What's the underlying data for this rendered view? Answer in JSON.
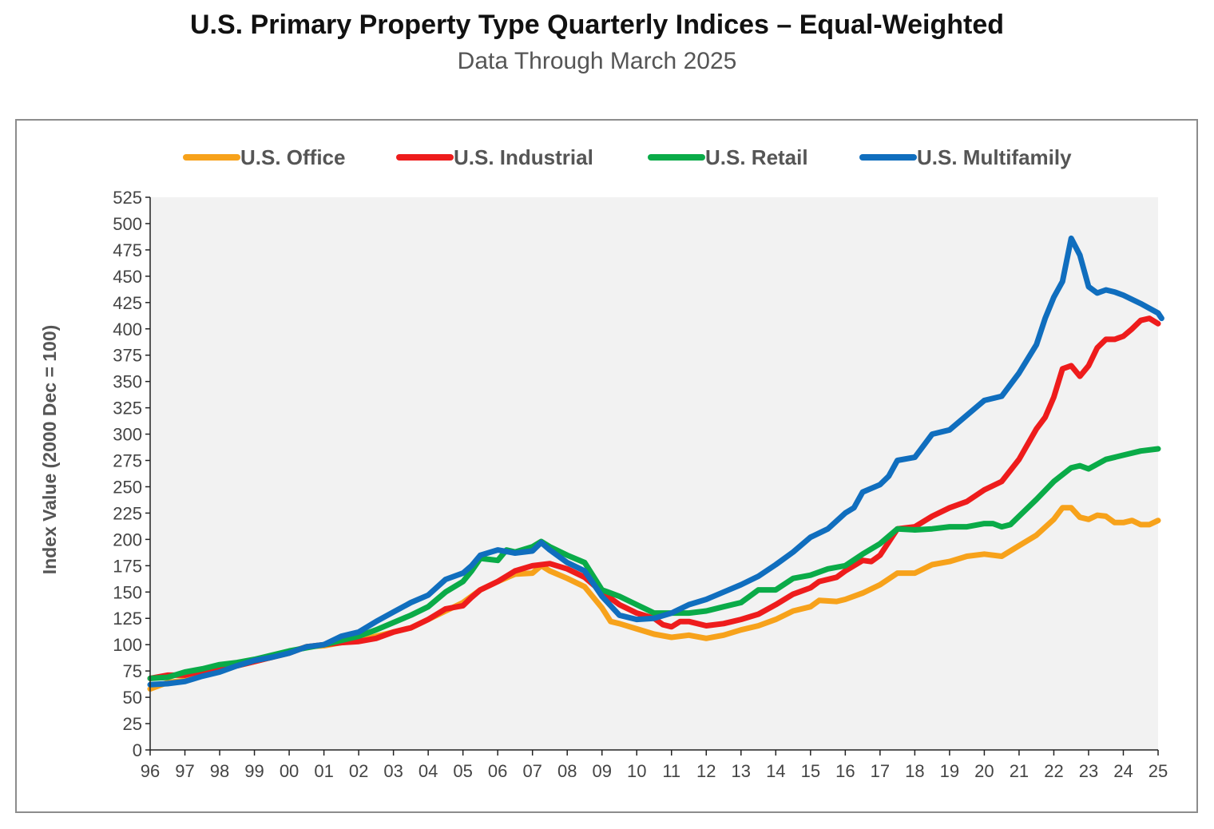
{
  "title": "U.S. Primary Property Type Quarterly Indices – Equal-Weighted",
  "subtitle": "Data Through March 2025",
  "chart_data": {
    "type": "line",
    "title": "U.S. Primary Property Type Quarterly Indices – Equal-Weighted",
    "subtitle": "Data Through March 2025",
    "xlabel": "",
    "ylabel": "Index Value (2000 Dec = 100)",
    "ylim": [
      0,
      525
    ],
    "xlim": [
      1996,
      2025
    ],
    "yticks": [
      0,
      25,
      50,
      75,
      100,
      125,
      150,
      175,
      200,
      225,
      250,
      275,
      300,
      325,
      350,
      375,
      400,
      425,
      450,
      475,
      500,
      525
    ],
    "xtick_labels": [
      "96",
      "97",
      "98",
      "99",
      "00",
      "01",
      "02",
      "03",
      "04",
      "05",
      "06",
      "07",
      "08",
      "09",
      "10",
      "11",
      "12",
      "13",
      "14",
      "15",
      "16",
      "17",
      "18",
      "19",
      "20",
      "21",
      "22",
      "23",
      "24",
      "25"
    ],
    "grid": false,
    "legend_position": "top",
    "series": [
      {
        "name": "U.S. Office",
        "color": "#f7a21b",
        "points": [
          [
            1996,
            58
          ],
          [
            1996.5,
            64
          ],
          [
            1997,
            66
          ],
          [
            1997.5,
            72
          ],
          [
            1998,
            76
          ],
          [
            1998.5,
            80
          ],
          [
            1999,
            84
          ],
          [
            1999.5,
            88
          ],
          [
            2000,
            93
          ],
          [
            2000.5,
            98
          ],
          [
            2001,
            99
          ],
          [
            2001.5,
            102
          ],
          [
            2002,
            104
          ],
          [
            2002.5,
            108
          ],
          [
            2003,
            112
          ],
          [
            2003.5,
            116
          ],
          [
            2004,
            124
          ],
          [
            2004.5,
            132
          ],
          [
            2005,
            140
          ],
          [
            2005.5,
            152
          ],
          [
            2006,
            160
          ],
          [
            2006.5,
            167
          ],
          [
            2007,
            168
          ],
          [
            2007.25,
            175
          ],
          [
            2007.5,
            170
          ],
          [
            2008,
            163
          ],
          [
            2008.5,
            155
          ],
          [
            2009,
            135
          ],
          [
            2009.25,
            122
          ],
          [
            2009.5,
            120
          ],
          [
            2010,
            115
          ],
          [
            2010.5,
            110
          ],
          [
            2011,
            107
          ],
          [
            2011.5,
            109
          ],
          [
            2012,
            106
          ],
          [
            2012.5,
            109
          ],
          [
            2013,
            114
          ],
          [
            2013.5,
            118
          ],
          [
            2014,
            124
          ],
          [
            2014.5,
            132
          ],
          [
            2015,
            136
          ],
          [
            2015.25,
            142
          ],
          [
            2015.75,
            141
          ],
          [
            2016,
            143
          ],
          [
            2016.5,
            149
          ],
          [
            2017,
            157
          ],
          [
            2017.5,
            168
          ],
          [
            2018,
            168
          ],
          [
            2018.5,
            176
          ],
          [
            2019,
            179
          ],
          [
            2019.5,
            184
          ],
          [
            2020,
            186
          ],
          [
            2020.5,
            184
          ],
          [
            2021,
            194
          ],
          [
            2021.5,
            204
          ],
          [
            2022,
            219
          ],
          [
            2022.25,
            230
          ],
          [
            2022.5,
            230
          ],
          [
            2022.75,
            221
          ],
          [
            2023,
            219
          ],
          [
            2023.25,
            223
          ],
          [
            2023.5,
            222
          ],
          [
            2023.75,
            216
          ],
          [
            2024,
            216
          ],
          [
            2024.25,
            218
          ],
          [
            2024.5,
            214
          ],
          [
            2024.75,
            214
          ],
          [
            2025,
            218
          ]
        ]
      },
      {
        "name": "U.S. Industrial",
        "color": "#ee1c1c",
        "points": [
          [
            1996,
            68
          ],
          [
            1996.5,
            71
          ],
          [
            1997,
            71
          ],
          [
            1997.5,
            75
          ],
          [
            1998,
            77
          ],
          [
            1998.5,
            80
          ],
          [
            1999,
            84
          ],
          [
            1999.5,
            88
          ],
          [
            2000,
            92
          ],
          [
            2000.5,
            98
          ],
          [
            2001,
            100
          ],
          [
            2001.5,
            102
          ],
          [
            2002,
            103
          ],
          [
            2002.5,
            106
          ],
          [
            2003,
            112
          ],
          [
            2003.5,
            116
          ],
          [
            2004,
            124
          ],
          [
            2004.5,
            134
          ],
          [
            2005,
            137
          ],
          [
            2005.25,
            145
          ],
          [
            2005.5,
            152
          ],
          [
            2006,
            160
          ],
          [
            2006.5,
            170
          ],
          [
            2007,
            175
          ],
          [
            2007.5,
            177
          ],
          [
            2008,
            172
          ],
          [
            2008.5,
            164
          ],
          [
            2009,
            150
          ],
          [
            2009.5,
            138
          ],
          [
            2010,
            130
          ],
          [
            2010.5,
            125
          ],
          [
            2010.75,
            119
          ],
          [
            2011,
            117
          ],
          [
            2011.25,
            122
          ],
          [
            2011.5,
            122
          ],
          [
            2012,
            118
          ],
          [
            2012.5,
            120
          ],
          [
            2013,
            124
          ],
          [
            2013.5,
            129
          ],
          [
            2014,
            138
          ],
          [
            2014.5,
            148
          ],
          [
            2015,
            154
          ],
          [
            2015.25,
            160
          ],
          [
            2015.75,
            164
          ],
          [
            2016,
            170
          ],
          [
            2016.5,
            180
          ],
          [
            2016.75,
            179
          ],
          [
            2017,
            185
          ],
          [
            2017.5,
            210
          ],
          [
            2018,
            212
          ],
          [
            2018.5,
            222
          ],
          [
            2019,
            230
          ],
          [
            2019.5,
            236
          ],
          [
            2020,
            247
          ],
          [
            2020.5,
            255
          ],
          [
            2021,
            276
          ],
          [
            2021.5,
            305
          ],
          [
            2021.75,
            316
          ],
          [
            2022,
            335
          ],
          [
            2022.25,
            362
          ],
          [
            2022.5,
            365
          ],
          [
            2022.75,
            355
          ],
          [
            2023,
            365
          ],
          [
            2023.25,
            382
          ],
          [
            2023.5,
            390
          ],
          [
            2023.75,
            390
          ],
          [
            2024,
            393
          ],
          [
            2024.25,
            400
          ],
          [
            2024.5,
            408
          ],
          [
            2024.75,
            410
          ],
          [
            2025,
            405
          ]
        ]
      },
      {
        "name": "U.S. Retail",
        "color": "#0aab48",
        "points": [
          [
            1996,
            68
          ],
          [
            1996.5,
            69
          ],
          [
            1997,
            74
          ],
          [
            1997.5,
            77
          ],
          [
            1998,
            81
          ],
          [
            1998.5,
            83
          ],
          [
            1999,
            86
          ],
          [
            1999.5,
            90
          ],
          [
            2000,
            94
          ],
          [
            2000.5,
            97
          ],
          [
            2001,
            100
          ],
          [
            2001.5,
            104
          ],
          [
            2002,
            108
          ],
          [
            2002.5,
            114
          ],
          [
            2003,
            121
          ],
          [
            2003.5,
            128
          ],
          [
            2004,
            136
          ],
          [
            2004.5,
            150
          ],
          [
            2005,
            160
          ],
          [
            2005.25,
            170
          ],
          [
            2005.5,
            182
          ],
          [
            2006,
            180
          ],
          [
            2006.25,
            190
          ],
          [
            2006.5,
            188
          ],
          [
            2007,
            193
          ],
          [
            2007.25,
            198
          ],
          [
            2007.5,
            193
          ],
          [
            2008,
            185
          ],
          [
            2008.5,
            178
          ],
          [
            2009,
            152
          ],
          [
            2009.5,
            146
          ],
          [
            2010,
            138
          ],
          [
            2010.5,
            130
          ],
          [
            2011,
            130
          ],
          [
            2011.5,
            130
          ],
          [
            2012,
            132
          ],
          [
            2012.5,
            136
          ],
          [
            2013,
            140
          ],
          [
            2013.25,
            146
          ],
          [
            2013.5,
            152
          ],
          [
            2014,
            152
          ],
          [
            2014.5,
            163
          ],
          [
            2015,
            166
          ],
          [
            2015.5,
            172
          ],
          [
            2016,
            175
          ],
          [
            2016.5,
            186
          ],
          [
            2017,
            196
          ],
          [
            2017.5,
            210
          ],
          [
            2018,
            209
          ],
          [
            2018.5,
            210
          ],
          [
            2019,
            212
          ],
          [
            2019.5,
            212
          ],
          [
            2020,
            215
          ],
          [
            2020.25,
            215
          ],
          [
            2020.5,
            212
          ],
          [
            2020.75,
            214
          ],
          [
            2021,
            222
          ],
          [
            2021.5,
            238
          ],
          [
            2022,
            255
          ],
          [
            2022.5,
            268
          ],
          [
            2022.75,
            270
          ],
          [
            2023,
            267
          ],
          [
            2023.5,
            276
          ],
          [
            2024,
            280
          ],
          [
            2024.5,
            284
          ],
          [
            2025,
            286
          ]
        ]
      },
      {
        "name": "U.S. Multifamily",
        "color": "#106ebe",
        "points": [
          [
            1996,
            62
          ],
          [
            1996.5,
            63
          ],
          [
            1997,
            65
          ],
          [
            1997.5,
            70
          ],
          [
            1998,
            74
          ],
          [
            1998.5,
            80
          ],
          [
            1999,
            85
          ],
          [
            1999.5,
            88
          ],
          [
            2000,
            92
          ],
          [
            2000.5,
            98
          ],
          [
            2001,
            100
          ],
          [
            2001.5,
            108
          ],
          [
            2002,
            112
          ],
          [
            2002.5,
            122
          ],
          [
            2003,
            131
          ],
          [
            2003.5,
            140
          ],
          [
            2004,
            147
          ],
          [
            2004.5,
            162
          ],
          [
            2005,
            168
          ],
          [
            2005.25,
            175
          ],
          [
            2005.5,
            185
          ],
          [
            2006,
            190
          ],
          [
            2006.5,
            187
          ],
          [
            2007,
            189
          ],
          [
            2007.25,
            197
          ],
          [
            2007.5,
            190
          ],
          [
            2008,
            178
          ],
          [
            2008.5,
            170
          ],
          [
            2009,
            146
          ],
          [
            2009.5,
            128
          ],
          [
            2010,
            124
          ],
          [
            2010.5,
            125
          ],
          [
            2011,
            130
          ],
          [
            2011.5,
            138
          ],
          [
            2012,
            143
          ],
          [
            2012.5,
            150
          ],
          [
            2013,
            157
          ],
          [
            2013.5,
            165
          ],
          [
            2014,
            176
          ],
          [
            2014.5,
            188
          ],
          [
            2015,
            202
          ],
          [
            2015.5,
            210
          ],
          [
            2016,
            225
          ],
          [
            2016.25,
            230
          ],
          [
            2016.5,
            245
          ],
          [
            2017,
            252
          ],
          [
            2017.25,
            260
          ],
          [
            2017.5,
            275
          ],
          [
            2018,
            278
          ],
          [
            2018.5,
            300
          ],
          [
            2019,
            304
          ],
          [
            2019.5,
            318
          ],
          [
            2020,
            332
          ],
          [
            2020.5,
            336
          ],
          [
            2021,
            358
          ],
          [
            2021.5,
            385
          ],
          [
            2021.75,
            410
          ],
          [
            2022,
            430
          ],
          [
            2022.25,
            445
          ],
          [
            2022.5,
            486
          ],
          [
            2022.75,
            470
          ],
          [
            2023,
            440
          ],
          [
            2023.25,
            434
          ],
          [
            2023.5,
            437
          ],
          [
            2023.75,
            435
          ],
          [
            2024,
            432
          ],
          [
            2024.5,
            424
          ],
          [
            2025,
            415
          ],
          [
            2025.1,
            410
          ]
        ]
      }
    ]
  }
}
